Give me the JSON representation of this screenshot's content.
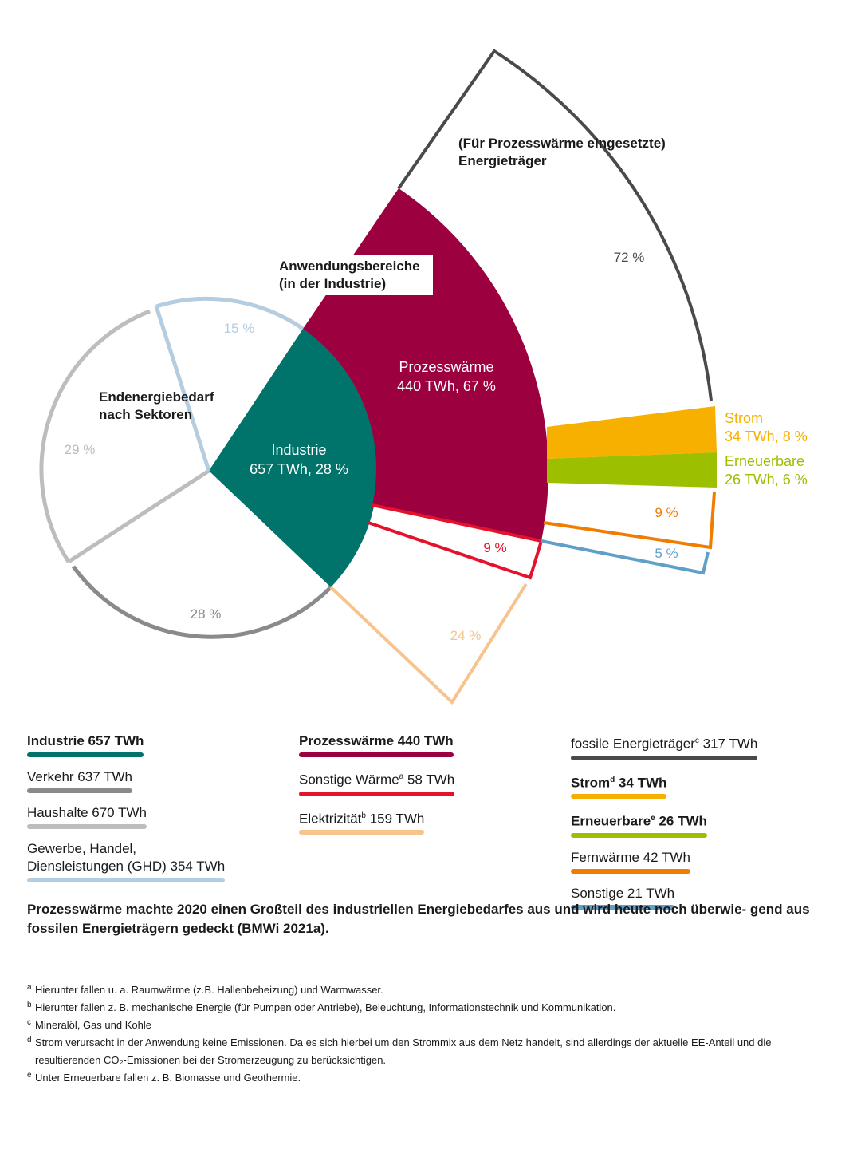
{
  "colors": {
    "industrie": "#00736b",
    "verkehr": "#8a8a8a",
    "haushalte": "#bdbdbd",
    "ghd": "#b5cde0",
    "prozesswaerme": "#9c003f",
    "sonstige_waerme": "#e4122b",
    "elektrizitaet": "#f6c48c",
    "fossil": "#4a4a4a",
    "strom": "#f7b000",
    "erneuerbare": "#9cbf00",
    "fernwaerme": "#f07d00",
    "sonstige": "#5f9fc8"
  },
  "chart_data": [
    {
      "type": "pie",
      "title": "Endenergiebedarf nach Sektoren",
      "unit": "TWh",
      "slices": [
        {
          "label": "Industrie",
          "value": 657,
          "percent": 28,
          "percent_label": "28 %",
          "center_label": "657 TWh, 28 %"
        },
        {
          "label": "Verkehr",
          "value": 637,
          "percent": 28,
          "percent_label": "28 %"
        },
        {
          "label": "Haushalte",
          "value": 670,
          "percent": 29,
          "percent_label": "29 %"
        },
        {
          "label": "Gewerbe, Handel, Diensleistungen (GHD)",
          "value": 354,
          "percent": 15,
          "percent_label": "15 %"
        }
      ]
    },
    {
      "type": "pie",
      "title": "Anwendungsbereiche (in der Industrie)",
      "unit": "TWh",
      "slices": [
        {
          "label": "Prozesswärme",
          "value": 440,
          "percent": 67,
          "percent_label": "67 %",
          "center_label": "440 TWh, 67 %"
        },
        {
          "label": "Sonstige Wärme",
          "value": 58,
          "percent": 9,
          "percent_label": "9 %"
        },
        {
          "label": "Elektrizität",
          "value": 159,
          "percent": 24,
          "percent_label": "24 %"
        }
      ]
    },
    {
      "type": "pie",
      "title": "(Für Prozesswärme eingesetzte) Energieträger",
      "unit": "TWh",
      "slices": [
        {
          "label": "fossile Energieträger",
          "value": 317,
          "percent": 72,
          "percent_label": "72 %"
        },
        {
          "label": "Strom",
          "value": 34,
          "percent": 8,
          "percent_label": "34 TWh, 8 %"
        },
        {
          "label": "Erneuerbare",
          "value": 26,
          "percent": 6,
          "percent_label": "26 TWh, 6 %"
        },
        {
          "label": "Fernwärme",
          "value": 42,
          "percent": 9,
          "percent_label": "9 %"
        },
        {
          "label": "Sonstige",
          "value": 21,
          "percent": 5,
          "percent_label": "5 %"
        }
      ]
    }
  ],
  "legend": {
    "col1": [
      {
        "text": "Industrie 657 TWh",
        "sup": "",
        "after": "",
        "bold": true,
        "color": "#00736b"
      },
      {
        "text": "Verkehr 637 TWh",
        "sup": "",
        "after": "",
        "bold": false,
        "color": "#8a8a8a"
      },
      {
        "text": "Haushalte 670 TWh",
        "sup": "",
        "after": "",
        "bold": false,
        "color": "#bdbdbd"
      },
      {
        "text": "Gewerbe, Handel,",
        "text2": "Diensleistungen (GHD) 354 TWh",
        "sup": "",
        "after": "",
        "bold": false,
        "color": "#b5cde0"
      }
    ],
    "col2": [
      {
        "text": "Prozesswärme 440 TWh",
        "sup": "",
        "after": "",
        "bold": true,
        "color": "#9c003f"
      },
      {
        "text": "Sonstige Wärme",
        "sup": "a",
        "after": " 58 TWh",
        "bold": false,
        "color": "#e4122b"
      },
      {
        "text": "Elektrizität",
        "sup": "b",
        "after": " 159 TWh",
        "bold": false,
        "color": "#f6c48c"
      }
    ],
    "col3": [
      {
        "text": "fossile Energieträger",
        "sup": "c",
        "after": " 317 TWh",
        "bold": false,
        "color": "#4a4a4a"
      },
      {
        "text": "Strom",
        "sup": "d",
        "after": " 34 TWh",
        "bold": true,
        "color": "#f7b000"
      },
      {
        "text": "Erneuerbare",
        "sup": "e",
        "after": " 26 TWh",
        "bold": true,
        "color": "#9cbf00"
      },
      {
        "text": "Fernwärme 42 TWh",
        "sup": "",
        "after": "",
        "bold": false,
        "color": "#f07d00"
      },
      {
        "text": "Sonstige 21 TWh",
        "sup": "",
        "after": "",
        "bold": false,
        "color": "#5f9fc8"
      }
    ]
  },
  "caption": "Prozesswärme machte 2020 einen Großteil des industriellen Energiebedarfes aus und wird heute noch überwie- gend aus fossilen Energieträgern gedeckt (BMWi 2021a).",
  "footnotes": [
    {
      "mark": "a",
      "text": "Hierunter fallen u. a. Raumwärme (z.B. Hallenbeheizung) und Warmwasser."
    },
    {
      "mark": "b",
      "text": "Hierunter fallen z. B. mechanische Energie (für Pumpen oder Antriebe), Beleuchtung, Informationstechnik und Kommunikation."
    },
    {
      "mark": "c",
      "text": "Mineralöl, Gas und Kohle"
    },
    {
      "mark": "d",
      "text": "Strom verursacht in der Anwendung keine Emissionen. Da es sich hierbei um den Strommix aus dem Netz handelt, sind allerdings der aktuelle EE-Anteil und die resultierenden CO₂-Emissionen bei der Stromerzeugung zu berücksichtigen."
    },
    {
      "mark": "e",
      "text": "Unter Erneuerbare fallen z. B. Biomasse und Geothermie."
    }
  ]
}
